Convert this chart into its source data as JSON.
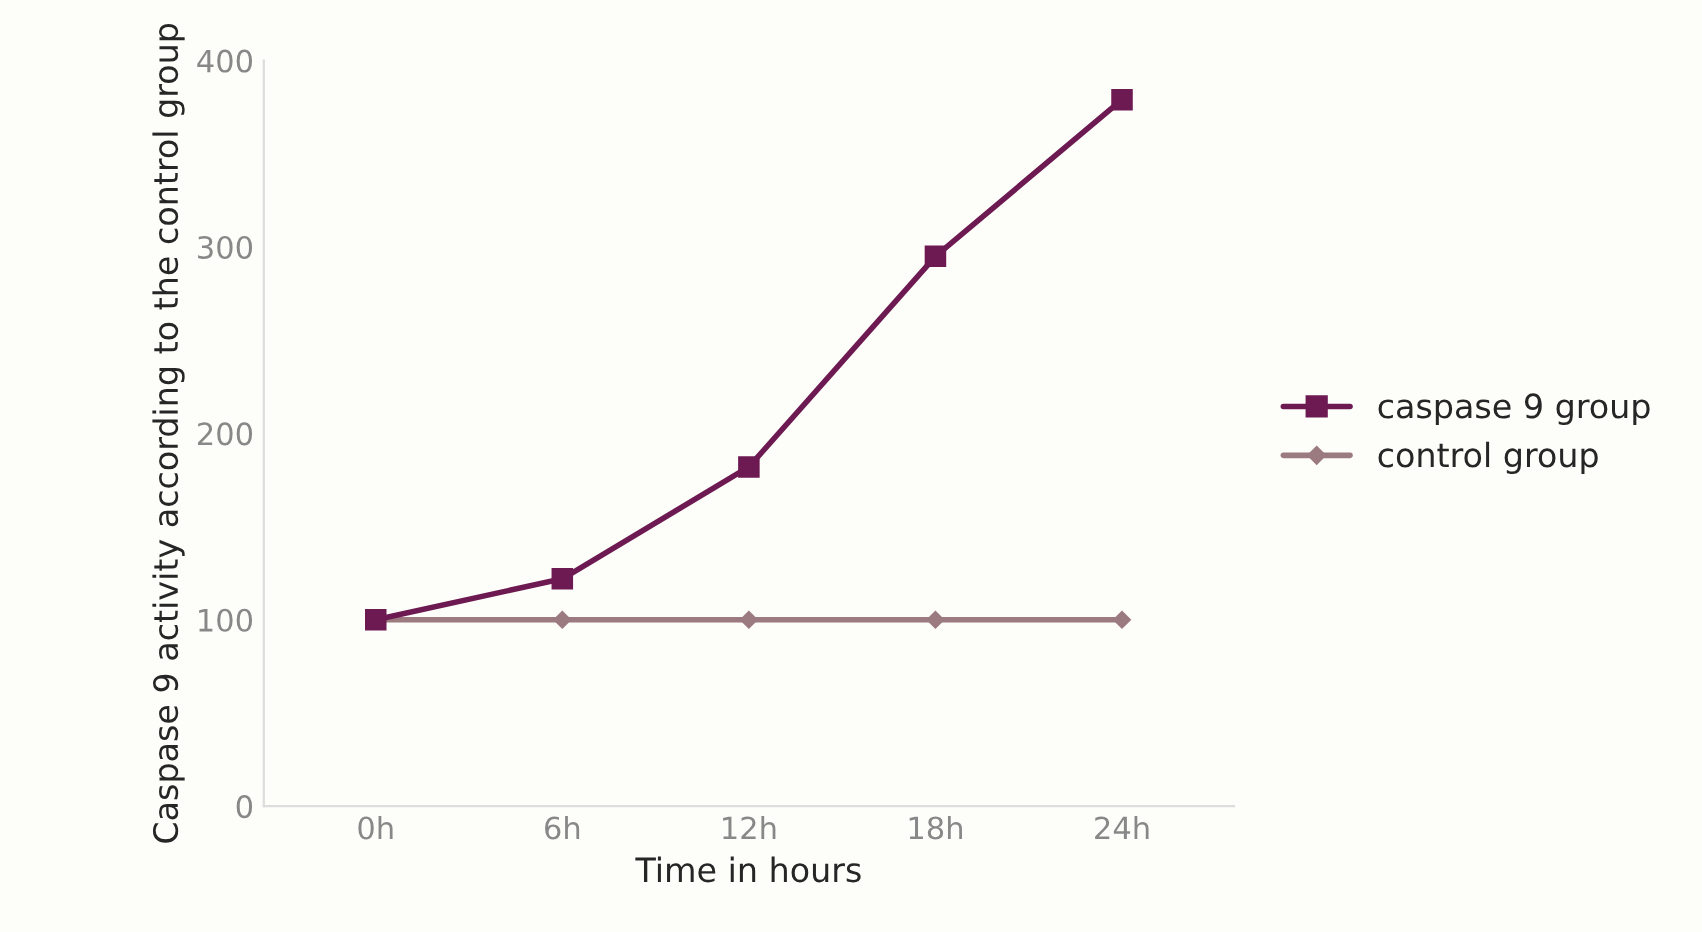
{
  "chart_data": {
    "type": "line",
    "xlabel": "Time in hours",
    "ylabel": "Caspase 9 activity according to the control group",
    "categories": [
      "0h",
      "6h",
      "12h",
      "18h",
      "24h"
    ],
    "series": [
      {
        "name": "caspase 9 group",
        "color": "#6e1a52",
        "values": [
          100,
          122,
          182,
          295,
          379
        ],
        "marker": "square"
      },
      {
        "name": "control group",
        "color": "#9b7a80",
        "values": [
          100,
          100,
          100,
          100,
          100
        ],
        "marker": "diamond"
      }
    ],
    "ylim": [
      0,
      400
    ],
    "yticks": [
      0,
      100,
      200,
      300,
      400
    ],
    "grid": false,
    "legend": "right",
    "line_style": "solid"
  }
}
